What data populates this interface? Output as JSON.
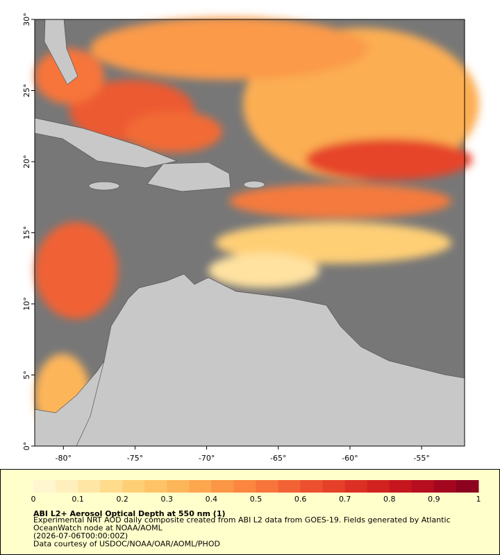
{
  "map": {
    "xlim": [
      -82,
      -52
    ],
    "ylim": [
      0,
      30
    ],
    "xticks": [
      {
        "value": -80,
        "label": "-80°"
      },
      {
        "value": -75,
        "label": "-75°"
      },
      {
        "value": -70,
        "label": "-70°"
      },
      {
        "value": -65,
        "label": "-65°"
      },
      {
        "value": -60,
        "label": "-60°"
      },
      {
        "value": -55,
        "label": "-55°"
      }
    ],
    "yticks": [
      {
        "value": 0,
        "label": "0°"
      },
      {
        "value": 5,
        "label": "5°"
      },
      {
        "value": 10,
        "label": "10°"
      },
      {
        "value": 15,
        "label": "15°"
      },
      {
        "value": 20,
        "label": "20°"
      },
      {
        "value": 25,
        "label": "25°"
      },
      {
        "value": 30,
        "label": "30°"
      }
    ]
  },
  "colorbar": {
    "lim": [
      0,
      1
    ],
    "ticks": [
      0,
      0.1,
      0.2,
      0.3,
      0.4,
      0.5,
      0.6,
      0.7,
      0.8,
      0.9,
      1
    ],
    "colors": [
      "#fff6d0",
      "#ffefbc",
      "#ffe6a4",
      "#ffdb8c",
      "#ffcf76",
      "#fec366",
      "#fdb55a",
      "#fca64e",
      "#fb9646",
      "#fa8640",
      "#f7743a",
      "#f26234",
      "#ec502e",
      "#e54029",
      "#dc3024",
      "#d22220",
      "#c5161e",
      "#b60d1f",
      "#a3071f",
      "#8c031f"
    ]
  },
  "caption": {
    "title": "ABI L2+ Aerosol Optical Depth at 550 nm (1)",
    "lines": [
      "Experimental NRT AOD daily composite created from ABI L2 data from GOES-19. Fields generated by Atlantic",
      "OceanWatch node at NOAA/AOML",
      "(2026-07-06T00:00:00Z)",
      "Data courtesy of USDOC/NOAA/OAR/AOML/PHOD"
    ]
  }
}
